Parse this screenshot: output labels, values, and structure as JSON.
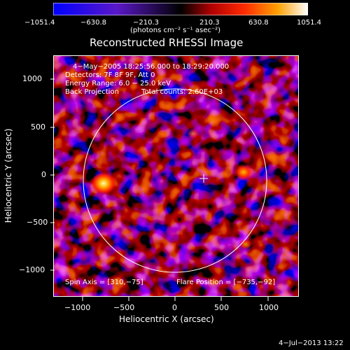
{
  "colorbar": {
    "ticks": [
      "−1051.4",
      "−630.8",
      "−210.3",
      "210.3",
      "630.8",
      "1051.4"
    ],
    "units": "(photons cm⁻² s⁻¹ asec⁻²)"
  },
  "title": "Reconstructed RHESSI Image",
  "annotations": {
    "time": "4−May−2005 18:25:56.000 to 18:29:20.000",
    "detectors": "Detectors: 7F 8F 9F, Att 0",
    "energy": "Energy Range: 6.0 − 25.0 keV",
    "method": "Back Projection",
    "counts": "Total counts: 2.60E+03",
    "spin_axis": "Spin Axis = [310,−75]",
    "flare_position": "Flare Position = [−735,−92]"
  },
  "x_axis": {
    "label": "Heliocentric X (arcsec)",
    "ticks": [
      "−1000",
      "−500",
      "0",
      "500",
      "1000"
    ]
  },
  "y_axis": {
    "label": "Heliocentric Y (arcsec)",
    "ticks": [
      "1000",
      "500",
      "0",
      "−500",
      "−1000"
    ]
  },
  "footer_date": "4−Jul−2013 13:22"
}
